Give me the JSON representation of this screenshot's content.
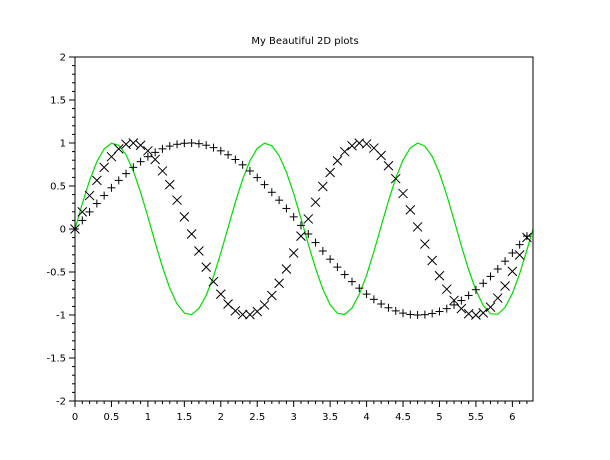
{
  "chart_data": {
    "type": "line",
    "title": "My Beautiful 2D plots",
    "xlabel": "",
    "ylabel": "",
    "xlim": [
      0,
      6.283
    ],
    "ylim": [
      -2,
      2
    ],
    "x_ticks": [
      0,
      0.5,
      1,
      1.5,
      2,
      2.5,
      3,
      3.5,
      4,
      4.5,
      5,
      5.5,
      6
    ],
    "x_tick_labels": [
      "0",
      "0.5",
      "1",
      "1.5",
      "2",
      "2.5",
      "3",
      "3.5",
      "4",
      "4.5",
      "5",
      "5.5",
      "6"
    ],
    "y_ticks": [
      -2,
      -1.5,
      -1,
      -0.5,
      0,
      0.5,
      1,
      1.5,
      2
    ],
    "y_tick_labels": [
      "-2",
      "-1.5",
      "-1",
      "-0.5",
      "0",
      "0.5",
      "1",
      "1.5",
      "2"
    ],
    "grid": false,
    "legend": "none",
    "series": [
      {
        "style": "line",
        "color": "#00dd00",
        "x": [
          0,
          0.1,
          0.2,
          0.3,
          0.4,
          0.5,
          0.6,
          0.7,
          0.8,
          0.9,
          1.0,
          1.1,
          1.2,
          1.3,
          1.4,
          1.5,
          1.6,
          1.7,
          1.8,
          1.9,
          2.0,
          2.1,
          2.2,
          2.3,
          2.4,
          2.5,
          2.6,
          2.7,
          2.8,
          2.9,
          3.0,
          3.1,
          3.2,
          3.3,
          3.4,
          3.5,
          3.6,
          3.7,
          3.8,
          3.9,
          4.0,
          4.1,
          4.2,
          4.3,
          4.4,
          4.5,
          4.6,
          4.7,
          4.8,
          4.9,
          5.0,
          5.1,
          5.2,
          5.3,
          5.4,
          5.5,
          5.6,
          5.7,
          5.8,
          5.9,
          6.0,
          6.1,
          6.2,
          6.283
        ],
        "y": [
          0,
          0.295,
          0.565,
          0.783,
          0.932,
          0.997,
          0.974,
          0.863,
          0.675,
          0.427,
          0.141,
          -0.158,
          -0.443,
          -0.688,
          -0.872,
          -0.978,
          -0.996,
          -0.924,
          -0.772,
          -0.551,
          -0.279,
          0.017,
          0.312,
          0.578,
          0.794,
          0.938,
          0.998,
          0.968,
          0.853,
          0.661,
          0.412,
          0.124,
          -0.176,
          -0.457,
          -0.7,
          -0.88,
          -0.981,
          -0.994,
          -0.918,
          -0.76,
          -0.537,
          -0.263,
          0.033,
          0.327,
          0.592,
          0.802,
          0.943,
          0.999,
          0.964,
          0.844,
          0.648,
          0.394,
          0.104,
          -0.195,
          -0.474,
          -0.712,
          -0.888,
          -0.985,
          -0.992,
          -0.912,
          -0.749,
          -0.519,
          -0.243,
          0
        ]
      },
      {
        "style": "plus-marker",
        "color": "#000000",
        "x": [
          0,
          0.1,
          0.2,
          0.3,
          0.4,
          0.5,
          0.6,
          0.7,
          0.8,
          0.9,
          1.0,
          1.1,
          1.2,
          1.3,
          1.4,
          1.5,
          1.6,
          1.7,
          1.8,
          1.9,
          2.0,
          2.1,
          2.2,
          2.3,
          2.4,
          2.5,
          2.6,
          2.7,
          2.8,
          2.9,
          3.0,
          3.1,
          3.2,
          3.3,
          3.4,
          3.5,
          3.6,
          3.7,
          3.8,
          3.9,
          4.0,
          4.1,
          4.2,
          4.3,
          4.4,
          4.5,
          4.6,
          4.7,
          4.8,
          4.9,
          5.0,
          5.1,
          5.2,
          5.3,
          5.4,
          5.5,
          5.6,
          5.7,
          5.8,
          5.9,
          6.0,
          6.1,
          6.2
        ],
        "y": [
          0,
          0.1,
          0.199,
          0.296,
          0.389,
          0.479,
          0.565,
          0.644,
          0.717,
          0.783,
          0.841,
          0.891,
          0.932,
          0.964,
          0.985,
          0.997,
          1.0,
          0.992,
          0.974,
          0.946,
          0.909,
          0.863,
          0.808,
          0.746,
          0.675,
          0.598,
          0.516,
          0.427,
          0.335,
          0.239,
          0.141,
          0.042,
          -0.058,
          -0.158,
          -0.256,
          -0.351,
          -0.443,
          -0.53,
          -0.612,
          -0.688,
          -0.757,
          -0.818,
          -0.872,
          -0.916,
          -0.952,
          -0.978,
          -0.994,
          -1.0,
          -0.996,
          -0.982,
          -0.959,
          -0.926,
          -0.883,
          -0.832,
          -0.773,
          -0.706,
          -0.631,
          -0.551,
          -0.465,
          -0.374,
          -0.279,
          -0.182,
          -0.083
        ]
      },
      {
        "style": "x-marker",
        "color": "#000000",
        "x": [
          0,
          0.1,
          0.2,
          0.3,
          0.4,
          0.5,
          0.6,
          0.7,
          0.8,
          0.9,
          1.0,
          1.1,
          1.2,
          1.3,
          1.4,
          1.5,
          1.6,
          1.7,
          1.8,
          1.9,
          2.0,
          2.1,
          2.2,
          2.3,
          2.4,
          2.5,
          2.6,
          2.7,
          2.8,
          2.9,
          3.0,
          3.1,
          3.2,
          3.3,
          3.4,
          3.5,
          3.6,
          3.7,
          3.8,
          3.9,
          4.0,
          4.1,
          4.2,
          4.3,
          4.4,
          4.5,
          4.6,
          4.7,
          4.8,
          4.9,
          5.0,
          5.1,
          5.2,
          5.3,
          5.4,
          5.5,
          5.6,
          5.7,
          5.8,
          5.9,
          6.0,
          6.1,
          6.2
        ],
        "y": [
          0,
          0.199,
          0.389,
          0.565,
          0.717,
          0.841,
          0.932,
          0.985,
          1.0,
          0.974,
          0.909,
          0.808,
          0.675,
          0.516,
          0.335,
          0.141,
          -0.058,
          -0.256,
          -0.443,
          -0.612,
          -0.757,
          -0.872,
          -0.952,
          -0.994,
          -0.996,
          -0.959,
          -0.883,
          -0.773,
          -0.631,
          -0.465,
          -0.279,
          -0.083,
          0.117,
          0.312,
          0.494,
          0.657,
          0.794,
          0.899,
          0.968,
          0.999,
          0.989,
          0.941,
          0.855,
          0.735,
          0.585,
          0.412,
          0.222,
          0.024,
          -0.175,
          -0.366,
          -0.544,
          -0.7,
          -0.829,
          -0.926,
          -0.985,
          -1.0,
          -0.975,
          -0.908,
          -0.803,
          -0.663,
          -0.493,
          -0.302,
          -0.099
        ]
      }
    ]
  }
}
